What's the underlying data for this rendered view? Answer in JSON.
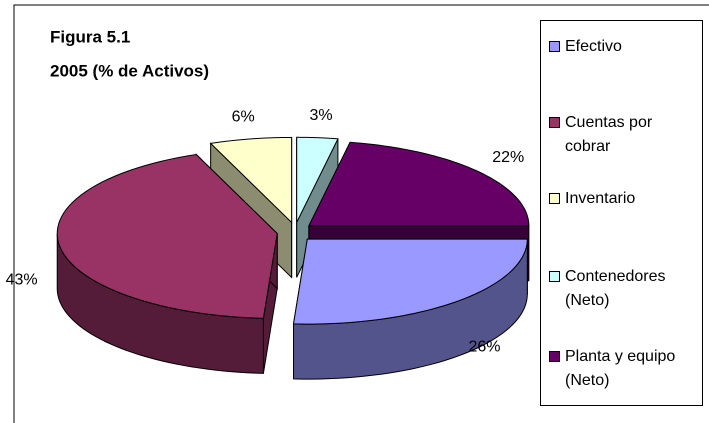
{
  "chart_data": {
    "type": "pie3d",
    "title": "Figura 5.1",
    "subtitle": "2005 (% de Activos)",
    "categories": [
      "Efectivo",
      "Cuentas por cobrar",
      "Inventario",
      "Contenedores (Neto)",
      "Planta y equipo (Neto)"
    ],
    "values": [
      26,
      43,
      6,
      3,
      22
    ],
    "value_labels": [
      "26%",
      "43%",
      "6%",
      "3%",
      "22%"
    ],
    "colors": [
      "#9999ff",
      "#993366",
      "#ffffcc",
      "#ccffff",
      "#660066"
    ],
    "legend": "right"
  }
}
